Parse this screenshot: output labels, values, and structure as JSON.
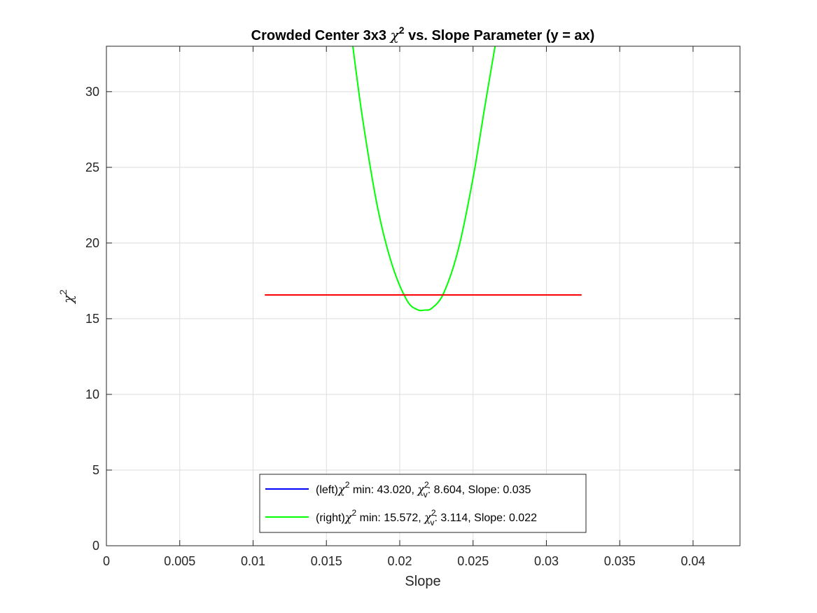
{
  "chart_data": {
    "type": "line",
    "title": {
      "prefix": "Crowded Center 3x3 ",
      "symbol": "χ",
      "sup": "2",
      "suffix": " vs. Slope Parameter (y = ax)"
    },
    "xlabel": "Slope",
    "ylabel": {
      "symbol": "χ",
      "sup": "2"
    },
    "xlim": [
      0,
      0.0432
    ],
    "ylim": [
      0,
      33
    ],
    "xticks": [
      0,
      0.005,
      0.01,
      0.015,
      0.02,
      0.025,
      0.03,
      0.035,
      0.04
    ],
    "xtick_labels": [
      "0",
      "0.005",
      "0.01",
      "0.015",
      "0.02",
      "0.025",
      "0.03",
      "0.035",
      "0.04"
    ],
    "yticks": [
      0,
      5,
      10,
      15,
      20,
      25,
      30
    ],
    "ytick_labels": [
      "0",
      "5",
      "10",
      "15",
      "20",
      "25",
      "30"
    ],
    "grid": true,
    "series": [
      {
        "name": "(left)χ² min: 43.020, χ²ᵥ: 8.604, Slope: 0.035",
        "color": "#0000ff",
        "x": [],
        "y": []
      },
      {
        "name": "(right)χ² min: 15.572, χ²ᵥ: 3.114, Slope: 0.022",
        "color": "#00ff00",
        "x": [
          0.0168,
          0.0175,
          0.0185,
          0.0195,
          0.0205,
          0.0212,
          0.0217,
          0.0222,
          0.023,
          0.024,
          0.025,
          0.0258,
          0.0265
        ],
        "y": [
          33.0,
          28.0,
          22.3,
          18.5,
          16.2,
          15.6,
          15.57,
          15.7,
          16.7,
          19.6,
          24.3,
          29.0,
          33.0
        ]
      },
      {
        "name": "",
        "color": "#ff0000",
        "x": [
          0.0108,
          0.0324
        ],
        "y": [
          16.57,
          16.57
        ]
      }
    ],
    "legend": {
      "location": "bottom-center",
      "entries": [
        {
          "color": "#0000ff",
          "prefix": "(left)",
          "chi": "χ",
          "sup": "2",
          "mid": " min: 43.020, ",
          "chi_v": "χ",
          "sub_v": "v",
          "sup_v": "2",
          "rest": ": 8.604, Slope: 0.035"
        },
        {
          "color": "#00ff00",
          "prefix": "(right)",
          "chi": "χ",
          "sup": "2",
          "mid": " min: 15.572, ",
          "chi_v": "χ",
          "sub_v": "v",
          "sup_v": "2",
          "rest": ": 3.114, Slope: 0.022"
        }
      ]
    }
  }
}
